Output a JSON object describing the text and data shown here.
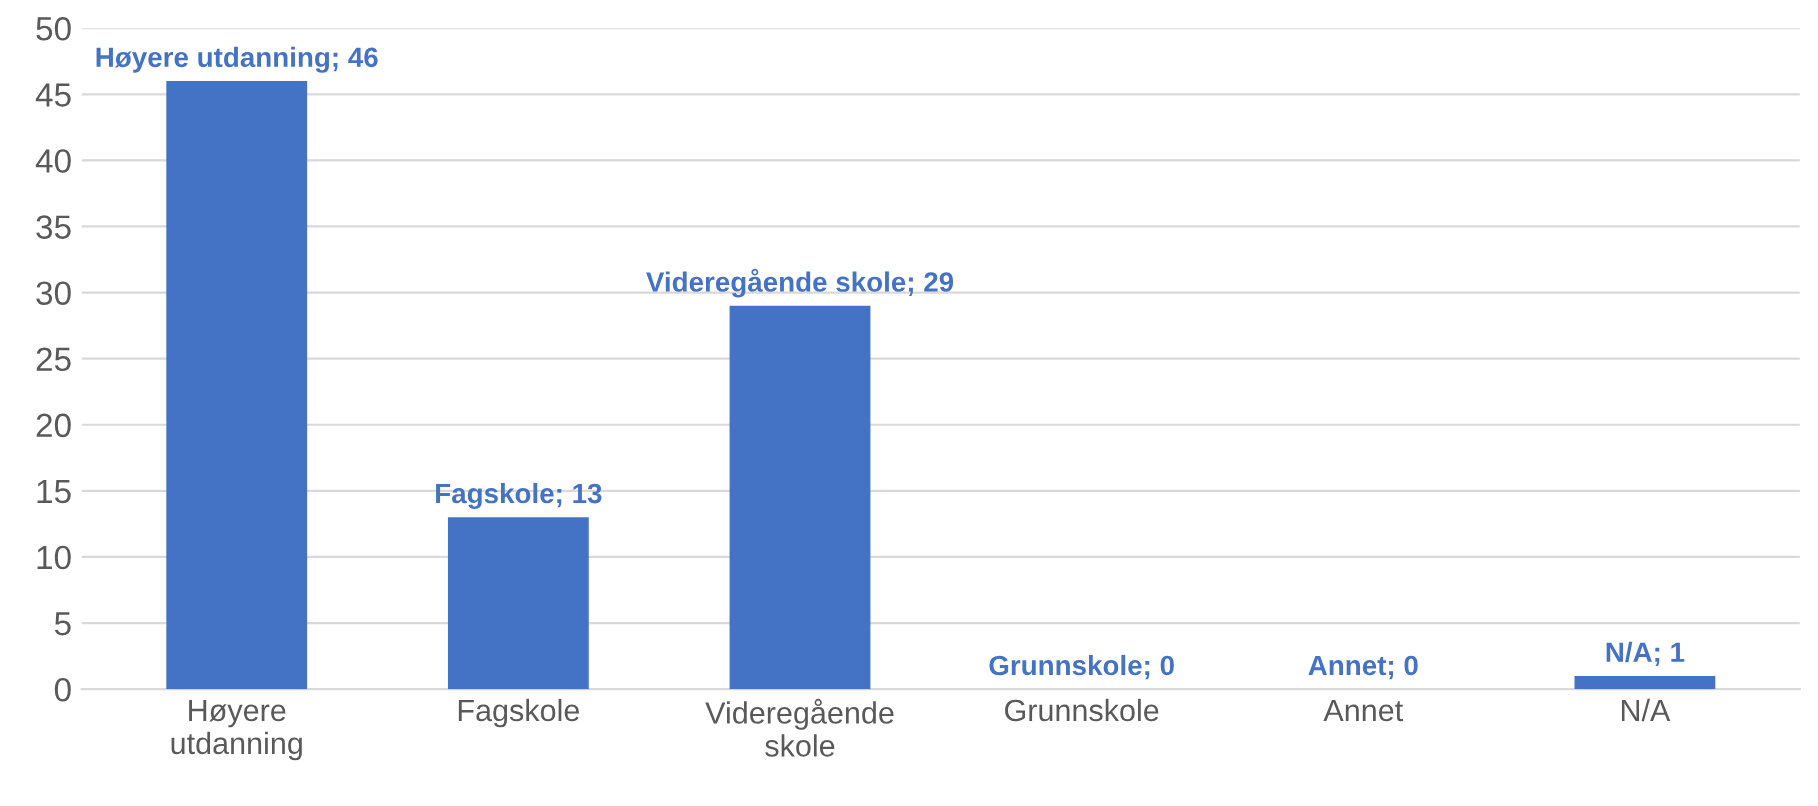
{
  "chart_data": {
    "type": "bar",
    "categories": [
      "Høyere\nutdanning",
      "Fagskole",
      "Videregående\nskole",
      "Grunnskole",
      "Annet",
      "N/A"
    ],
    "values": [
      46,
      13,
      29,
      0,
      0,
      1
    ],
    "value_labels": [
      "Høyere utdanning; 46",
      "Fagskole; 13",
      "Videregående skole; 29",
      "Grunnskole; 0",
      "Annet; 0",
      "N/A; 1"
    ],
    "color": "#4472c4",
    "ylim": [
      0,
      50
    ],
    "yticks": [
      0,
      5,
      10,
      15,
      20,
      25,
      30,
      35,
      40,
      45,
      50
    ],
    "grid": "y",
    "legend": false
  }
}
